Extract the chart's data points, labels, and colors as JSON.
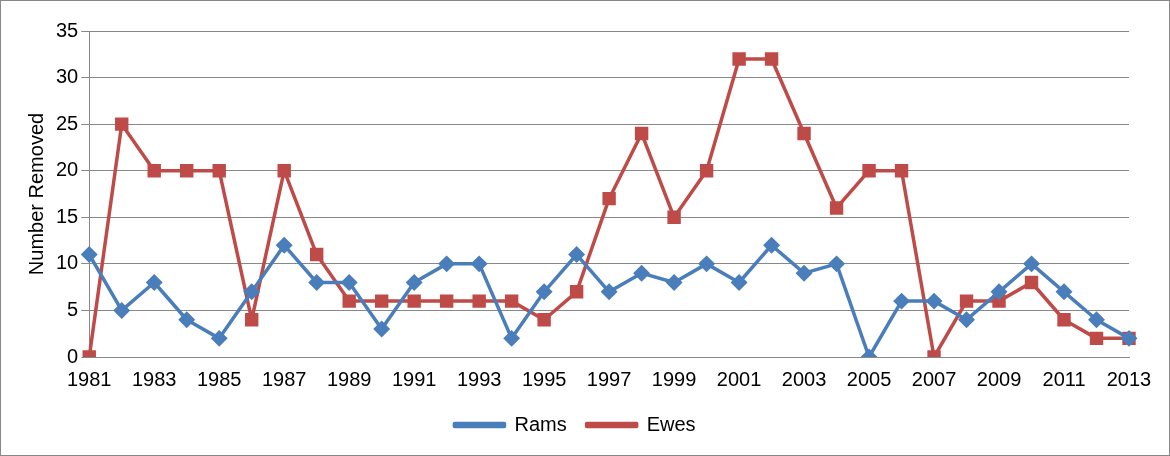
{
  "chart_data": {
    "type": "line",
    "ylabel": "Number Removed",
    "categories": [
      "1981",
      null,
      "1983",
      null,
      "1985",
      null,
      "1987",
      null,
      "1989",
      null,
      "1991",
      null,
      "1993",
      null,
      "1995",
      null,
      "1997",
      null,
      "1999",
      null,
      "2001",
      null,
      "2003",
      null,
      "2005",
      null,
      "2007",
      null,
      "2009",
      null,
      "2011",
      null,
      "2013"
    ],
    "series": [
      {
        "name": "Rams",
        "color": "#4a7ebb",
        "marker": "diamond",
        "values": [
          11,
          5,
          8,
          4,
          2,
          7,
          12,
          8,
          8,
          3,
          8,
          10,
          10,
          2,
          7,
          11,
          7,
          9,
          8,
          10,
          8,
          12,
          9,
          10,
          0,
          6,
          6,
          4,
          7,
          10,
          7,
          4,
          2
        ]
      },
      {
        "name": "Ewes",
        "color": "#be4b48",
        "marker": "square",
        "values": [
          0,
          25,
          20,
          20,
          20,
          4,
          20,
          11,
          6,
          6,
          6,
          6,
          6,
          6,
          4,
          7,
          17,
          24,
          15,
          20,
          32,
          32,
          24,
          16,
          20,
          20,
          0,
          6,
          6,
          8,
          4,
          2,
          2
        ]
      }
    ],
    "ylim": [
      0,
      35
    ],
    "yticks": [
      0,
      5,
      10,
      15,
      20,
      25,
      30,
      35
    ],
    "grid": "y",
    "legend": "bottom",
    "line_style": "solid"
  }
}
